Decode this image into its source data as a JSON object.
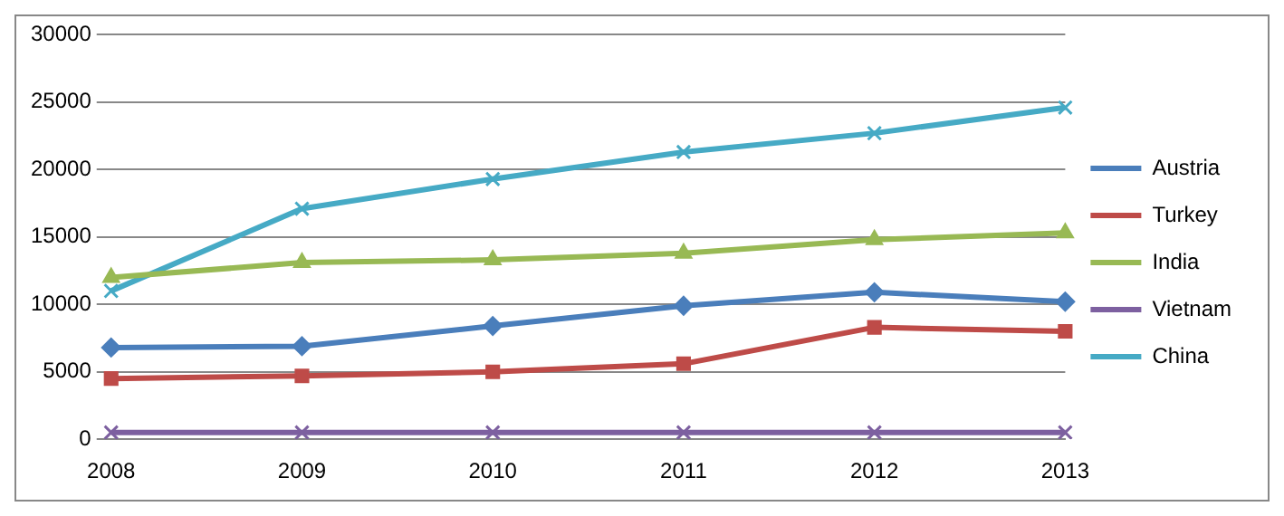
{
  "chart_data": {
    "type": "line",
    "categories": [
      "2008",
      "2009",
      "2010",
      "2011",
      "2012",
      "2013"
    ],
    "series": [
      {
        "name": "Austria",
        "color": "#4a7ebb",
        "marker": "diamond",
        "values": [
          6800,
          6900,
          8400,
          9900,
          10900,
          10200
        ]
      },
      {
        "name": "Turkey",
        "color": "#be4b48",
        "marker": "square",
        "values": [
          4500,
          4700,
          5000,
          5600,
          8300,
          8000
        ]
      },
      {
        "name": "India",
        "color": "#98b954",
        "marker": "triangle",
        "values": [
          12000,
          13100,
          13300,
          13800,
          14800,
          15300
        ]
      },
      {
        "name": "Vietnam",
        "color": "#7d60a0",
        "marker": "cross",
        "values": [
          500,
          500,
          500,
          500,
          500,
          500
        ]
      },
      {
        "name": "China",
        "color": "#46aac5",
        "marker": "cross",
        "values": [
          11000,
          17100,
          19300,
          21300,
          22700,
          24600
        ]
      }
    ],
    "ylim": [
      0,
      30000
    ],
    "yticks": [
      0,
      5000,
      10000,
      15000,
      20000,
      25000,
      30000
    ],
    "grid": "y",
    "legend": "right"
  }
}
